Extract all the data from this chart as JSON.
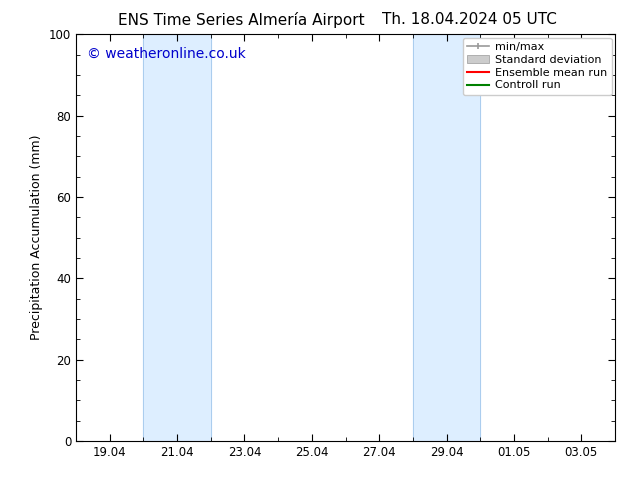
{
  "title_left": "ENS Time Series Almería Airport",
  "title_right": "Th. 18.04.2024 05 UTC",
  "ylabel": "Precipitation Accumulation (mm)",
  "watermark": "© weatheronline.co.uk",
  "watermark_color": "#0000cc",
  "bg_color": "#ffffff",
  "plot_bg_color": "#ffffff",
  "ylim": [
    0,
    100
  ],
  "yticks": [
    0,
    20,
    40,
    60,
    80,
    100
  ],
  "xtick_labels": [
    "19.04",
    "21.04",
    "23.04",
    "25.04",
    "27.04",
    "29.04",
    "01.05",
    "03.05"
  ],
  "xtick_positions": [
    1,
    3,
    5,
    7,
    9,
    11,
    13,
    15
  ],
  "xlim": [
    0,
    16
  ],
  "shaded_bands": [
    {
      "xstart": 2,
      "xend": 4,
      "color": "#ddeeff",
      "edgecolor": "#aaccee"
    },
    {
      "xstart": 10,
      "xend": 12,
      "color": "#ddeeff",
      "edgecolor": "#aaccee"
    }
  ],
  "legend_entries": [
    {
      "label": "min/max",
      "color": "#999999",
      "style": "line_with_cap"
    },
    {
      "label": "Standard deviation",
      "color": "#cccccc",
      "style": "bar"
    },
    {
      "label": "Ensemble mean run",
      "color": "#ff0000",
      "style": "line"
    },
    {
      "label": "Controll run",
      "color": "#008000",
      "style": "line"
    }
  ],
  "spine_color": "#000000",
  "tick_color": "#000000",
  "font_family": "DejaVu Sans",
  "title_fontsize": 11,
  "axis_label_fontsize": 9,
  "tick_fontsize": 8.5,
  "watermark_fontsize": 10,
  "legend_fontsize": 8
}
